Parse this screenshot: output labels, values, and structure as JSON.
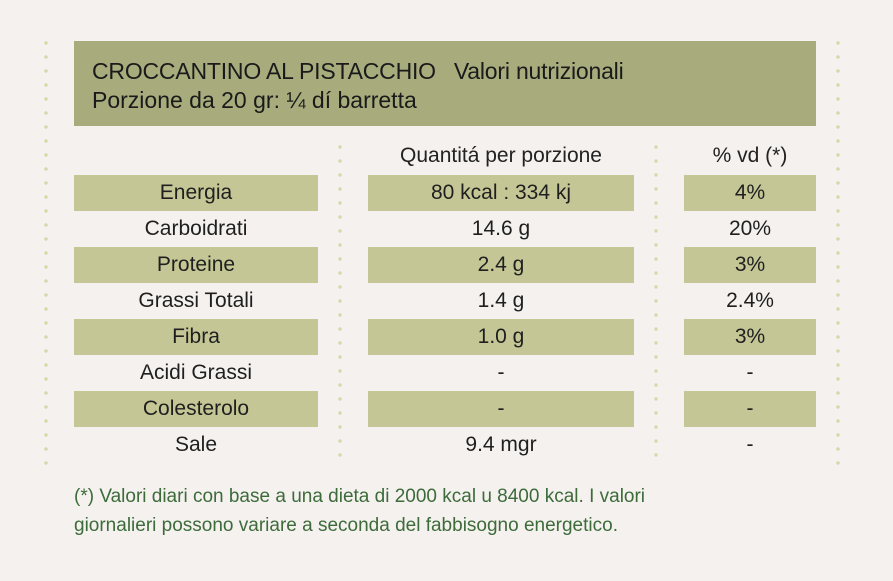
{
  "header": {
    "product": "CROCCANTINO AL PISTACCHIO",
    "subtitle": "Valori nutrizionali",
    "portion": "Porzione da 20 gr: ¼ dí barretta"
  },
  "columns": {
    "quantity": "Quantitá per porzione",
    "daily_value": "% vd (*)"
  },
  "rows": [
    {
      "name": "Energia",
      "quantity": "80 kcal : 334 kj",
      "daily_value": "4%",
      "shaded": true
    },
    {
      "name": "Carboidrati",
      "quantity": "14.6 g",
      "daily_value": "20%",
      "shaded": false
    },
    {
      "name": "Proteine",
      "quantity": "2.4 g",
      "daily_value": "3%",
      "shaded": true
    },
    {
      "name": "Grassi Totali",
      "quantity": "1.4 g",
      "daily_value": "2.4%",
      "shaded": false
    },
    {
      "name": "Fibra",
      "quantity": "1.0 g",
      "daily_value": "3%",
      "shaded": true
    },
    {
      "name": "Acidi Grassi",
      "quantity": "-",
      "daily_value": "-",
      "shaded": false
    },
    {
      "name": "Colesterolo",
      "quantity": "-",
      "daily_value": "-",
      "shaded": true
    },
    {
      "name": "Sale",
      "quantity": "9.4 mgr",
      "daily_value": "-",
      "shaded": false
    }
  ],
  "footnote": {
    "line1": "(*) Valori diari con base a una dieta di 2000 kcal u 8400 kcal. I valori",
    "line2": "giornalieri possono variare a seconda del fabbisogno energetico."
  },
  "colors": {
    "background": "#f4f1ee",
    "header_bg": "#a8ab7c",
    "row_shade": "#c4c795",
    "dots": "#d5d7a9",
    "footnote_text": "#3d6b3a"
  }
}
